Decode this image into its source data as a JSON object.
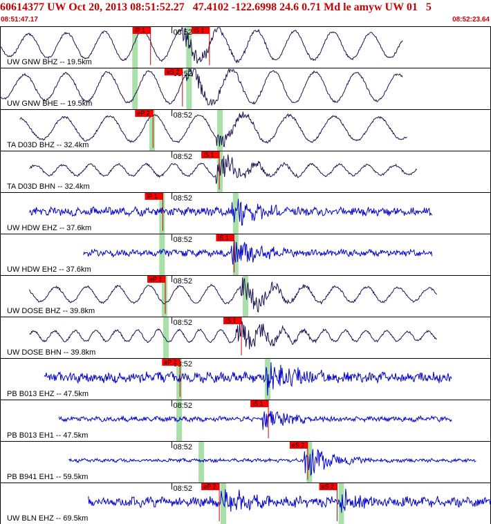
{
  "header": {
    "title": "60614377 UW Oct 20, 2013 08:51:52.27   47.4102 -122.6998 24.6 0.71 Md le amyw UW 01   5",
    "time_start": "08:51:47.17",
    "time_end": "08:52:23.64"
  },
  "colors": {
    "title": "#cc0000",
    "trace_dark": "#1a1050",
    "trace_blue": "#0000cc",
    "pick_box": "#ff0000",
    "window_band": "#a8e0a8",
    "border": "#000000"
  },
  "panels": [
    {
      "label": "UW GNW BHZ -- 19.5km",
      "minute": "08:52",
      "color": "dark",
      "start": 0.0,
      "end": 0.82,
      "type": "wave",
      "period": 55,
      "amp": 22,
      "eq": 0.38,
      "eqAmp": 16,
      "picks": [
        {
          "text": "iP 1",
          "x": 0.27
        },
        {
          "text": "iS 1",
          "x": 0.39
        }
      ],
      "bands": [
        0.275,
        0.385
      ]
    },
    {
      "label": "UW GNW BHE -- 19.5km",
      "minute": "08:52",
      "color": "dark",
      "start": 0.0,
      "end": 0.82,
      "type": "wave",
      "period": 60,
      "amp": 24,
      "eq": 0.39,
      "eqAmp": 14,
      "picks": [
        {
          "text": "eS 2",
          "x": 0.335
        }
      ],
      "bands": [
        0.275,
        0.385
      ]
    },
    {
      "label": "TA D03D BHZ -- 32.4km",
      "minute": "08:52",
      "color": "dark",
      "start": 0.04,
      "end": 0.83,
      "type": "wave",
      "period": 65,
      "amp": 20,
      "eq": 0.45,
      "eqAmp": 10,
      "picks": [
        {
          "text": "eP 2",
          "x": 0.275
        }
      ],
      "bands": [
        0.31,
        0.448
      ]
    },
    {
      "label": "TA D03D BHN -- 32.4km",
      "minute": "08:52",
      "color": "dark",
      "start": 0.06,
      "end": 0.85,
      "type": "wave",
      "period": 40,
      "amp": 9,
      "eq": 0.45,
      "eqAmp": 18,
      "picks": [
        {
          "text": "iS 1",
          "x": 0.41
        }
      ],
      "bands": [
        0.448
      ]
    },
    {
      "label": "UW HDW EHZ -- 37.6km",
      "minute": "08:52",
      "color": "blue",
      "start": 0.06,
      "end": 0.88,
      "type": "noise",
      "period": 20,
      "amp": 5,
      "eq": 0.48,
      "eqAmp": 20,
      "picks": [
        {
          "text": "iP 1",
          "x": 0.295
        }
      ],
      "bands": [
        0.33,
        0.48
      ]
    },
    {
      "label": "UW HDW EH2 -- 37.6km",
      "minute": "08:52",
      "color": "blue",
      "start": 0.17,
      "end": 0.88,
      "type": "noise",
      "period": 20,
      "amp": 4,
      "eq": 0.48,
      "eqAmp": 22,
      "picks": [
        {
          "text": "iS 1",
          "x": 0.44
        }
      ],
      "bands": [
        0.33,
        0.48
      ]
    },
    {
      "label": "UW DOSE BHZ -- 39.8km",
      "minute": "08:52",
      "color": "dark",
      "start": 0.06,
      "end": 0.89,
      "type": "wave",
      "period": 45,
      "amp": 13,
      "eq": 0.5,
      "eqAmp": 22,
      "picks": [
        {
          "text": "eP 1",
          "x": 0.3
        }
      ],
      "bands": [
        0.335,
        0.5
      ]
    },
    {
      "label": "UW DOSE BHN -- 39.8km",
      "minute": "08:52",
      "color": "dark",
      "start": 0.06,
      "end": 0.89,
      "type": "wave",
      "period": 30,
      "amp": 9,
      "eq": 0.49,
      "eqAmp": 22,
      "picks": [
        {
          "text": "iS 1",
          "x": 0.455
        }
      ],
      "bands": [
        0.338
      ]
    },
    {
      "label": "PB B013 EHZ -- 47.5km",
      "minute": "08:52",
      "color": "blue",
      "start": 0.09,
      "end": 0.92,
      "type": "noise",
      "period": 18,
      "amp": 6,
      "eq": 0.55,
      "eqAmp": 24,
      "picks": [
        {
          "text": "eP 2",
          "x": 0.33
        }
      ],
      "bands": [
        0.365,
        0.545
      ]
    },
    {
      "label": "PB B013 EH1 -- 47.5km",
      "minute": "08:52",
      "color": "blue",
      "start": 0.12,
      "end": 0.92,
      "type": "noise",
      "period": 18,
      "amp": 3,
      "eq": 0.545,
      "eqAmp": 15,
      "picks": [
        {
          "text": "iS 1",
          "x": 0.51
        }
      ],
      "bands": [
        0.365
      ]
    },
    {
      "label": "PB B941 EH1 -- 59.5km",
      "minute": "08:52",
      "color": "blue",
      "start": 0.14,
      "end": 0.97,
      "type": "noise",
      "period": 18,
      "amp": 2,
      "eq": 0.63,
      "eqAmp": 22,
      "picks": [
        {
          "text": "eS 2",
          "x": 0.59
        }
      ],
      "bands": [
        0.41,
        0.63
      ]
    },
    {
      "label": "UW BLN EHZ -- 69.5km",
      "minute": "08:52",
      "color": "blue",
      "start": 0.18,
      "end": 1.0,
      "type": "noise",
      "period": 22,
      "amp": 6,
      "eq": 0.46,
      "eqAmp": 20,
      "eq2": 0.7,
      "picks": [
        {
          "text": "eP 2",
          "x": 0.41
        },
        {
          "text": "eS 2",
          "x": 0.65
        }
      ],
      "bands": [
        0.455,
        0.695
      ]
    }
  ]
}
